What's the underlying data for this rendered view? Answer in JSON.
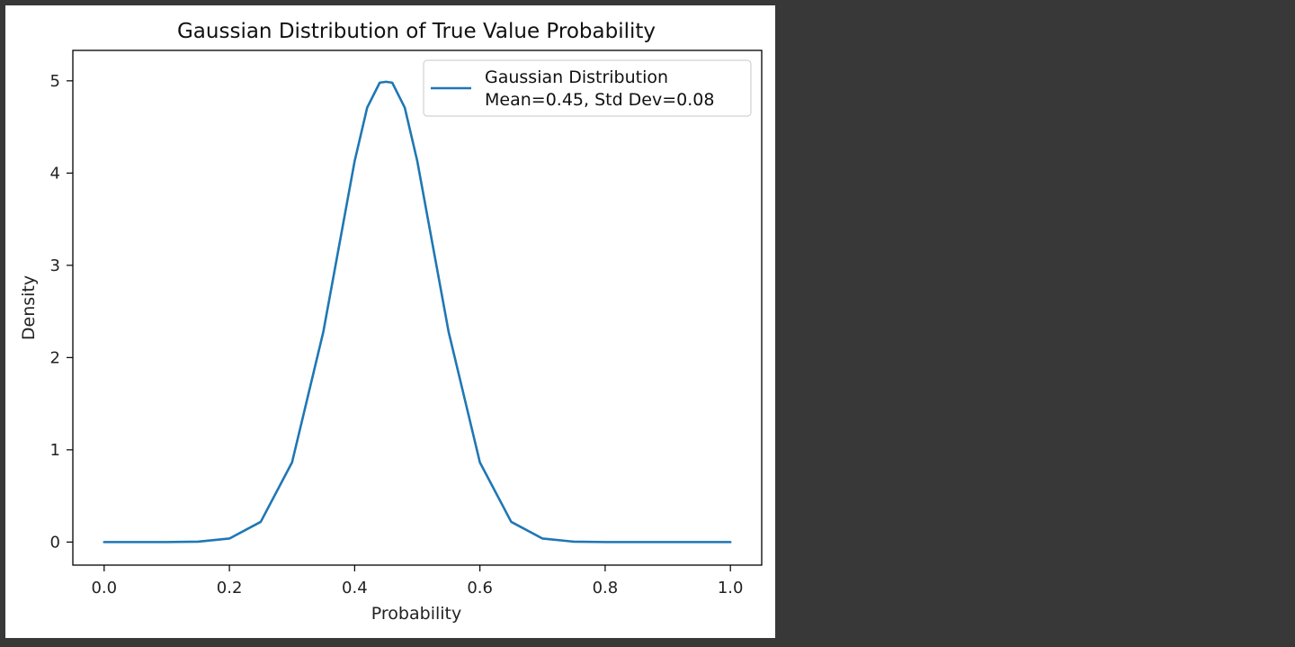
{
  "chart_data": {
    "type": "line",
    "title": "Gaussian Distribution of True Value Probability",
    "xlabel": "Probability",
    "ylabel": "Density",
    "xlim": [
      -0.05,
      1.05
    ],
    "ylim": [
      -0.25,
      5.33
    ],
    "x_ticks": [
      0.0,
      0.2,
      0.4,
      0.6,
      0.8,
      1.0
    ],
    "x_tick_labels": [
      "0.0",
      "0.2",
      "0.4",
      "0.6",
      "0.8",
      "1.0"
    ],
    "y_ticks": [
      0,
      1,
      2,
      3,
      4,
      5
    ],
    "y_tick_labels": [
      "0",
      "1",
      "2",
      "3",
      "4",
      "5"
    ],
    "grid": false,
    "legend_position": "upper right",
    "legend": {
      "line1": "Gaussian Distribution",
      "line2": "Mean=0.45, Std Dev=0.08"
    },
    "series": [
      {
        "name": "Gaussian Distribution\nMean=0.45, Std Dev=0.08",
        "color": "#1f77b4",
        "x": [
          0.0,
          0.05,
          0.1,
          0.15,
          0.2,
          0.25,
          0.3,
          0.35,
          0.4,
          0.42,
          0.44,
          0.45,
          0.46,
          0.48,
          0.5,
          0.55,
          0.6,
          0.65,
          0.7,
          0.75,
          0.8,
          0.85,
          0.9,
          0.95,
          1.0
        ],
        "y": [
          0.0,
          0.0,
          0.0,
          0.004,
          0.038,
          0.219,
          0.863,
          2.28,
          4.13,
          4.71,
          4.98,
          4.99,
          4.98,
          4.71,
          4.13,
          2.28,
          0.863,
          0.219,
          0.038,
          0.004,
          0.0,
          0.0,
          0.0,
          0.0,
          0.0
        ]
      }
    ]
  }
}
